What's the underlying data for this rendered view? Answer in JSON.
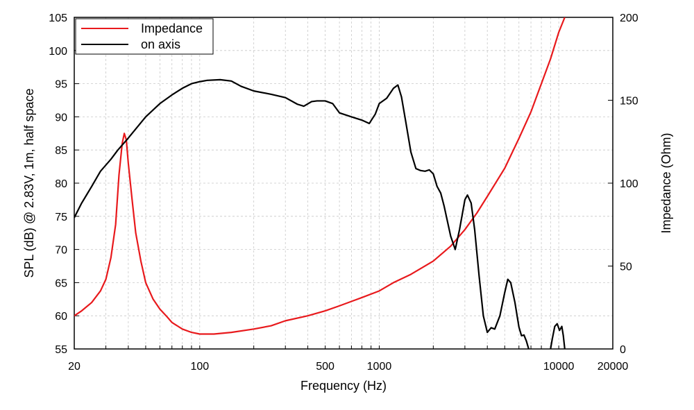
{
  "chart_data": {
    "type": "line",
    "xlabel": "Frequency (Hz)",
    "ylabel_left": "SPL (dB) @ 2.83V, 1m, half space",
    "ylabel_right": "Impedance (Ohm)",
    "x_scale": "log",
    "xlim": [
      20,
      20000
    ],
    "ylim_left": [
      55,
      105
    ],
    "ylim_right": [
      0,
      200
    ],
    "x_ticks": [
      20,
      100,
      500,
      1000,
      10000,
      20000
    ],
    "x_tick_labels": [
      "20",
      "100",
      "500",
      "1000",
      "10000",
      "20000"
    ],
    "y_left_ticks": [
      55,
      60,
      65,
      70,
      75,
      80,
      85,
      90,
      95,
      100,
      105
    ],
    "y_left_tick_labels": [
      "55",
      "60",
      "65",
      "70",
      "75",
      "80",
      "85",
      "90",
      "95",
      "100",
      "105"
    ],
    "y_right_ticks": [
      0,
      50,
      100,
      150,
      200
    ],
    "y_right_tick_labels": [
      "0",
      "50",
      "100",
      "150",
      "200"
    ],
    "grid": true,
    "legend_position": "top-left",
    "series": [
      {
        "name": "Impedance",
        "axis": "right",
        "color": "#e8191c",
        "points": [
          [
            20,
            20
          ],
          [
            22,
            23
          ],
          [
            25,
            28
          ],
          [
            28,
            35
          ],
          [
            30,
            42
          ],
          [
            32,
            55
          ],
          [
            34,
            75
          ],
          [
            35.5,
            105
          ],
          [
            37,
            124
          ],
          [
            38,
            130
          ],
          [
            39,
            126
          ],
          [
            40,
            112
          ],
          [
            42,
            90
          ],
          [
            44,
            70
          ],
          [
            47,
            53
          ],
          [
            50,
            40
          ],
          [
            55,
            30
          ],
          [
            60,
            24
          ],
          [
            65,
            20
          ],
          [
            70,
            16
          ],
          [
            80,
            12
          ],
          [
            90,
            10
          ],
          [
            100,
            9
          ],
          [
            120,
            9
          ],
          [
            150,
            10
          ],
          [
            200,
            12
          ],
          [
            250,
            14
          ],
          [
            300,
            17
          ],
          [
            400,
            20
          ],
          [
            500,
            23
          ],
          [
            600,
            26
          ],
          [
            800,
            31
          ],
          [
            1000,
            35
          ],
          [
            1200,
            40
          ],
          [
            1500,
            45
          ],
          [
            2000,
            53
          ],
          [
            2500,
            62
          ],
          [
            3000,
            72
          ],
          [
            3500,
            82
          ],
          [
            4000,
            92
          ],
          [
            5000,
            109
          ],
          [
            6000,
            127
          ],
          [
            7000,
            143
          ],
          [
            8000,
            160
          ],
          [
            9000,
            175
          ],
          [
            10000,
            191
          ],
          [
            10800,
            200
          ]
        ]
      },
      {
        "name": "on axis",
        "axis": "left",
        "color": "#000000",
        "points": [
          [
            20,
            74.8
          ],
          [
            22,
            77
          ],
          [
            25,
            79.5
          ],
          [
            28,
            81.8
          ],
          [
            32,
            83.6
          ],
          [
            35,
            85
          ],
          [
            40,
            86.8
          ],
          [
            50,
            90
          ],
          [
            60,
            92
          ],
          [
            70,
            93.3
          ],
          [
            80,
            94.3
          ],
          [
            90,
            95
          ],
          [
            100,
            95.3
          ],
          [
            110,
            95.5
          ],
          [
            130,
            95.6
          ],
          [
            150,
            95.4
          ],
          [
            170,
            94.6
          ],
          [
            200,
            93.9
          ],
          [
            250,
            93.4
          ],
          [
            300,
            92.9
          ],
          [
            350,
            91.9
          ],
          [
            380,
            91.6
          ],
          [
            420,
            92.3
          ],
          [
            450,
            92.4
          ],
          [
            500,
            92.4
          ],
          [
            550,
            92.0
          ],
          [
            600,
            90.6
          ],
          [
            700,
            90.0
          ],
          [
            800,
            89.5
          ],
          [
            880,
            89.0
          ],
          [
            950,
            90.4
          ],
          [
            1000,
            92.0
          ],
          [
            1100,
            92.8
          ],
          [
            1200,
            94.3
          ],
          [
            1270,
            94.8
          ],
          [
            1330,
            93.0
          ],
          [
            1400,
            89.5
          ],
          [
            1500,
            84.7
          ],
          [
            1600,
            82.2
          ],
          [
            1700,
            81.9
          ],
          [
            1800,
            81.8
          ],
          [
            1900,
            82.0
          ],
          [
            2000,
            81.4
          ],
          [
            2100,
            79.5
          ],
          [
            2200,
            78.5
          ],
          [
            2300,
            76.5
          ],
          [
            2500,
            72.0
          ],
          [
            2650,
            70.0
          ],
          [
            2800,
            73.0
          ],
          [
            3000,
            77.5
          ],
          [
            3100,
            78.2
          ],
          [
            3250,
            77.0
          ],
          [
            3400,
            73.0
          ],
          [
            3600,
            66.0
          ],
          [
            3800,
            60.0
          ],
          [
            4000,
            57.5
          ],
          [
            4200,
            58.2
          ],
          [
            4400,
            58.0
          ],
          [
            4700,
            60.0
          ],
          [
            5000,
            63.5
          ],
          [
            5200,
            65.5
          ],
          [
            5400,
            65.0
          ],
          [
            5700,
            62.0
          ],
          [
            6000,
            58.3
          ],
          [
            6200,
            57.0
          ],
          [
            6400,
            57.1
          ],
          [
            6600,
            56.2
          ],
          [
            6800,
            55
          ]
        ],
        "segments": [
          [
            [
              9000,
              55
            ],
            [
              9200,
              56.5
            ],
            [
              9500,
              58.4
            ],
            [
              9800,
              58.8
            ],
            [
              10100,
              57.8
            ],
            [
              10400,
              58.4
            ],
            [
              10600,
              57.0
            ],
            [
              10800,
              55
            ]
          ]
        ]
      }
    ]
  }
}
